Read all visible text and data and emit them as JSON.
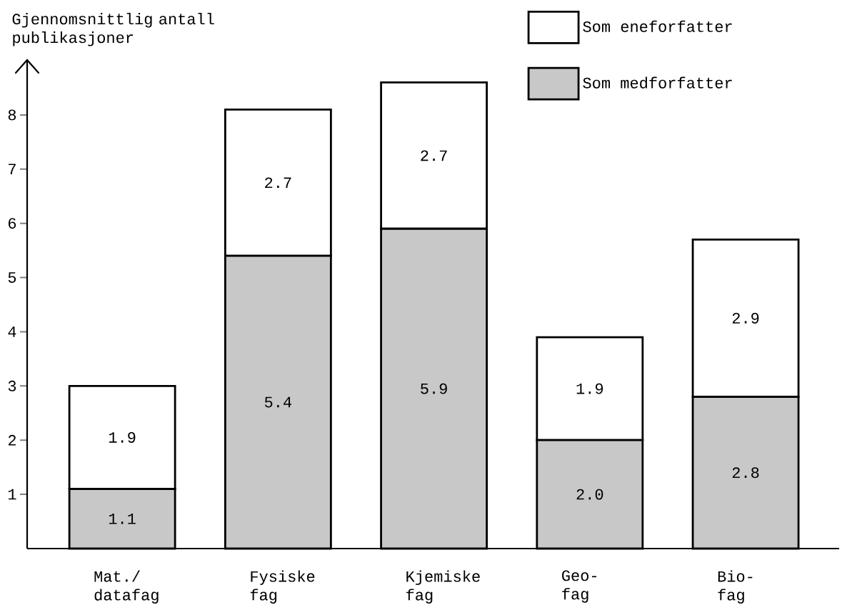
{
  "chart_data": {
    "type": "bar",
    "stacked": true,
    "ylabel": "Gjennomsnittlig antall publikasjoner",
    "categories": [
      "Mat./ datafag",
      "Fysiske fag",
      "Kjemiske fag",
      "Geo- fag",
      "Bio- fag"
    ],
    "series": [
      {
        "name": "Som medforfatter",
        "color": "#c8c8c8",
        "values": [
          1.1,
          5.4,
          5.9,
          2.0,
          2.8
        ],
        "value_labels": [
          "1.1",
          "5.4",
          "5.9",
          "2.0",
          "2.8"
        ]
      },
      {
        "name": "Som eneforfatter",
        "color": "#ffffff",
        "values": [
          1.9,
          2.7,
          2.7,
          1.9,
          2.9
        ],
        "value_labels": [
          "1.9",
          "2.7",
          "2.7",
          "1.9",
          "2.9"
        ]
      }
    ],
    "ylim": [
      0,
      9
    ],
    "yticks": [
      1,
      2,
      3,
      4,
      5,
      6,
      7,
      8
    ],
    "legend": "top right",
    "grid": false
  }
}
